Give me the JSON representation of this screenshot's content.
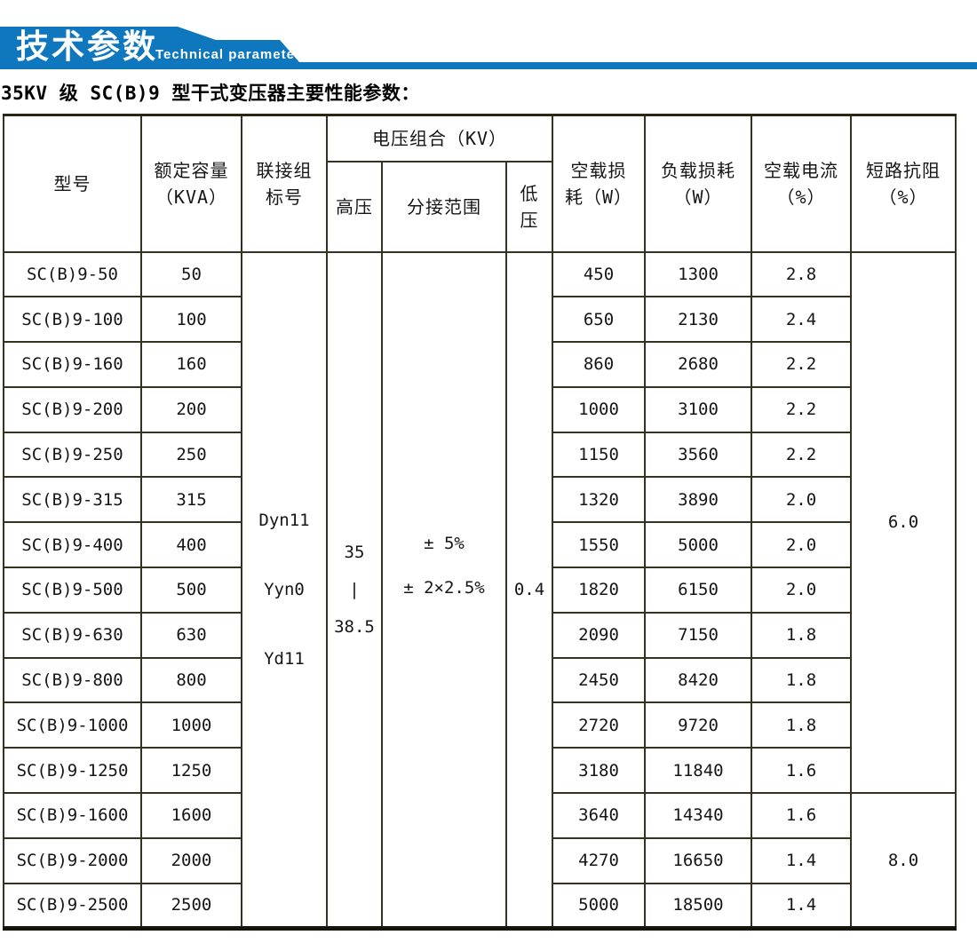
{
  "banner": {
    "title": "技术参数",
    "subtitle": "Technical parameter",
    "accent_color": "#0f77be"
  },
  "page_title": "35KV 级 SC(B)9 型干式变压器主要性能参数：",
  "table": {
    "headers": {
      "model": "型号",
      "capacity": {
        "line1": "额定容量",
        "line2": "（KVA）"
      },
      "connection": {
        "line1": "联接组",
        "line2": "标号"
      },
      "voltage_group": "电压组合（KV）",
      "high_voltage": "高压",
      "tap_range": "分接范围",
      "low_voltage": {
        "line1": "低",
        "line2": "压"
      },
      "no_load_loss": {
        "line1": "空载损",
        "line2": "耗（W）"
      },
      "load_loss": {
        "line1": "负载损耗",
        "line2": "（W）"
      },
      "no_load_current": {
        "line1": "空载电流",
        "line2": "（%）"
      },
      "impedance": {
        "line1": "短路抗阻",
        "line2": "（%）"
      }
    },
    "merged": {
      "connection": [
        "Dyn11",
        "Yyn0",
        "Yd11"
      ],
      "high_voltage": [
        "35",
        "|",
        "38.5"
      ],
      "tap_range": [
        "± 5%",
        "± 2×2.5%"
      ],
      "low_voltage": "0.4"
    },
    "impedance_groups": [
      {
        "value": "6.0",
        "row_start": 0,
        "row_span": 12
      },
      {
        "value": "8.0",
        "row_start": 12,
        "row_span": 3
      }
    ],
    "rows": [
      {
        "model": "SC(B)9-50",
        "kva": "50",
        "no_load_loss": "450",
        "load_loss": "1300",
        "no_load_current": "2.8"
      },
      {
        "model": "SC(B)9-100",
        "kva": "100",
        "no_load_loss": "650",
        "load_loss": "2130",
        "no_load_current": "2.4"
      },
      {
        "model": "SC(B)9-160",
        "kva": "160",
        "no_load_loss": "860",
        "load_loss": "2680",
        "no_load_current": "2.2"
      },
      {
        "model": "SC(B)9-200",
        "kva": "200",
        "no_load_loss": "1000",
        "load_loss": "3100",
        "no_load_current": "2.2"
      },
      {
        "model": "SC(B)9-250",
        "kva": "250",
        "no_load_loss": "1150",
        "load_loss": "3560",
        "no_load_current": "2.2"
      },
      {
        "model": "SC(B)9-315",
        "kva": "315",
        "no_load_loss": "1320",
        "load_loss": "3890",
        "no_load_current": "2.0"
      },
      {
        "model": "SC(B)9-400",
        "kva": "400",
        "no_load_loss": "1550",
        "load_loss": "5000",
        "no_load_current": "2.0"
      },
      {
        "model": "SC(B)9-500",
        "kva": "500",
        "no_load_loss": "1820",
        "load_loss": "6150",
        "no_load_current": "2.0"
      },
      {
        "model": "SC(B)9-630",
        "kva": "630",
        "no_load_loss": "2090",
        "load_loss": "7150",
        "no_load_current": "1.8"
      },
      {
        "model": "SC(B)9-800",
        "kva": "800",
        "no_load_loss": "2450",
        "load_loss": "8420",
        "no_load_current": "1.8"
      },
      {
        "model": "SC(B)9-1000",
        "kva": "1000",
        "no_load_loss": "2720",
        "load_loss": "9720",
        "no_load_current": "1.8"
      },
      {
        "model": "SC(B)9-1250",
        "kva": "1250",
        "no_load_loss": "3180",
        "load_loss": "11840",
        "no_load_current": "1.6"
      },
      {
        "model": "SC(B)9-1600",
        "kva": "1600",
        "no_load_loss": "3640",
        "load_loss": "14340",
        "no_load_current": "1.6"
      },
      {
        "model": "SC(B)9-2000",
        "kva": "2000",
        "no_load_loss": "4270",
        "load_loss": "16650",
        "no_load_current": "1.4"
      },
      {
        "model": "SC(B)9-2500",
        "kva": "2500",
        "no_load_loss": "5000",
        "load_loss": "18500",
        "no_load_current": "1.4"
      }
    ]
  }
}
